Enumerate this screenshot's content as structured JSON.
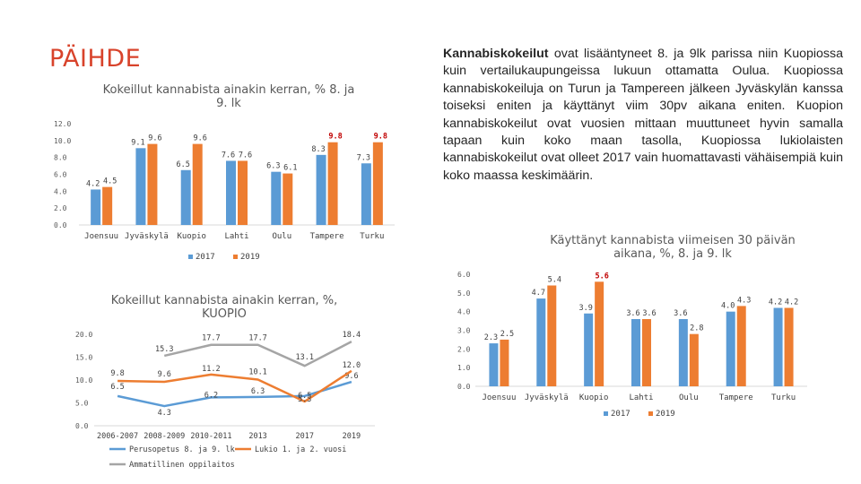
{
  "page": {
    "title": "PÄIHDE",
    "description_bold": "Kannabiskokeilut",
    "description_rest": " ovat lisääntyneet 8. ja 9lk parissa niin Kuopiossa kuin vertailukaupungeissa lukuun ottamatta Oulua. Kuopiossa kannabiskokeiluja on Turun ja Tampereen jälkeen Jyväskylän kanssa toiseksi eniten ja käyttänyt viim 30pv aikana eniten. Kuopion kannabiskokeilut ovat vuosien mittaan muuttuneet hyvin samalla tapaan kuin koko maan tasolla, Kuopiossa lukiolaisten kannabiskokeilut ovat olleet 2017 vain huomattavasti vähäisempiä kuin koko maassa keskimäärin."
  },
  "colors": {
    "blue": "#5b9bd5",
    "orange": "#ed7d31",
    "gray": "#a5a5a5",
    "title_red": "#d8432b",
    "label_red": "#c00000"
  },
  "chart_data": [
    {
      "type": "bar",
      "title": "Kokeillut kannabista ainakin kerran, % 8. ja 9. lk",
      "title_lines": [
        "Kokeillut kannabista ainakin kerran, % 8. ja",
        "9. lk"
      ],
      "categories": [
        "Joensuu",
        "Jyväskylä",
        "Kuopio",
        "Lahti",
        "Oulu",
        "Tampere",
        "Turku"
      ],
      "series": [
        {
          "name": "2017",
          "values": [
            4.2,
            9.1,
            6.5,
            7.6,
            6.3,
            8.3,
            7.3
          ]
        },
        {
          "name": "2019",
          "values": [
            4.5,
            9.6,
            9.6,
            7.6,
            6.1,
            9.8,
            9.8
          ]
        }
      ],
      "y_ticks": [
        "0.0",
        "2.0",
        "4.0",
        "6.0",
        "8.0",
        "10.0",
        "12.0"
      ],
      "ylim": [
        0,
        12
      ],
      "highlight_labels": [
        [
          1,
          5
        ],
        [
          1,
          6
        ]
      ],
      "legend": "bottom"
    },
    {
      "type": "bar",
      "title": "Käyttänyt kannabista viimeisen 30 päivän aikana, %, 8. ja 9. lk",
      "title_lines": [
        "Käyttänyt kannabista viimeisen 30 päivän",
        "aikana, %, 8. ja 9. lk"
      ],
      "categories": [
        "Joensuu",
        "Jyväskylä",
        "Kuopio",
        "Lahti",
        "Oulu",
        "Tampere",
        "Turku"
      ],
      "series": [
        {
          "name": "2017",
          "values": [
            2.3,
            4.7,
            3.9,
            3.6,
            3.6,
            4.0,
            4.2
          ]
        },
        {
          "name": "2019",
          "values": [
            2.5,
            5.4,
            5.6,
            3.6,
            2.8,
            4.3,
            4.2
          ]
        }
      ],
      "y_ticks": [
        "0.0",
        "1.0",
        "2.0",
        "3.0",
        "4.0",
        "5.0",
        "6.0"
      ],
      "ylim": [
        0,
        6
      ],
      "highlight_labels": [
        [
          1,
          2
        ]
      ],
      "legend": "bottom"
    },
    {
      "type": "line",
      "title": "Kokeillut kannabista ainakin kerran, %, KUOPIO",
      "title_lines": [
        "Kokeillut kannabista ainakin kerran, %,",
        "KUOPIO"
      ],
      "categories": [
        "2006-2007",
        "2008-2009",
        "2010-2011",
        "2013",
        "2017",
        "2019"
      ],
      "series": [
        {
          "name": "Perusopetus 8. ja 9. lk",
          "values": [
            6.5,
            4.3,
            6.2,
            6.3,
            6.5,
            9.6
          ]
        },
        {
          "name": "Lukio 1. ja 2. vuosi",
          "values": [
            9.8,
            9.6,
            11.2,
            10.1,
            5.3,
            12.0
          ]
        },
        {
          "name": "Ammatillinen oppilaitos",
          "values": [
            null,
            15.3,
            17.7,
            17.7,
            13.1,
            18.4
          ]
        }
      ],
      "y_ticks": [
        "0.0",
        "5.0",
        "10.0",
        "15.0",
        "20.0"
      ],
      "ylim": [
        0,
        20
      ],
      "legend": "bottom"
    }
  ]
}
